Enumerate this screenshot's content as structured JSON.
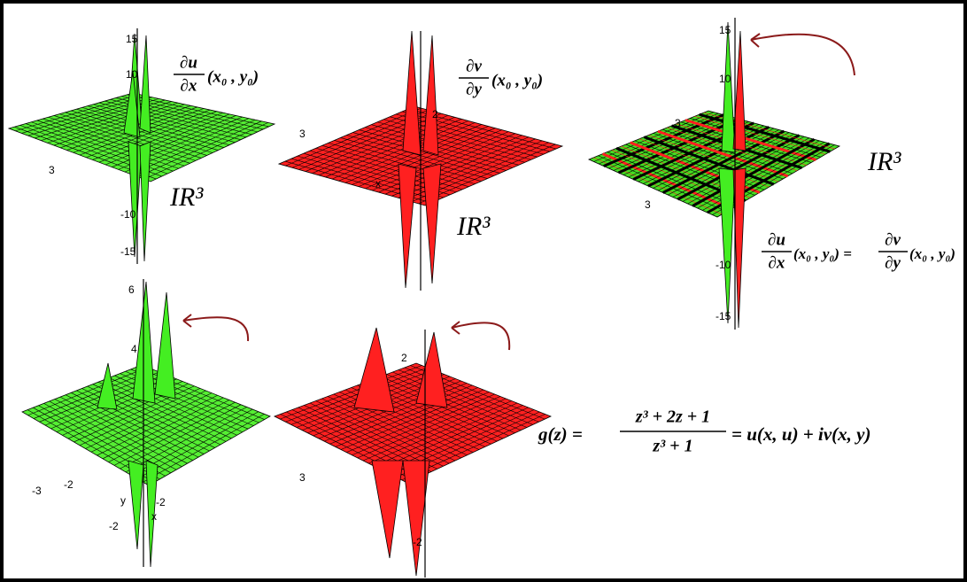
{
  "plots": [
    {
      "tick_labels": [
        "15",
        "10",
        "3",
        "-10",
        "-15"
      ],
      "space_label": "IR³",
      "formula": {
        "numerator": "∂u",
        "denominator": "∂x",
        "arguments": "(x₀ , y₀)"
      }
    },
    {
      "tick_labels": [
        "3",
        "2",
        "x"
      ],
      "space_label": "IR³",
      "formula": {
        "numerator": "∂v",
        "denominator": "∂y",
        "arguments": "(x₀ , y₀)"
      }
    },
    {
      "tick_labels": [
        "15",
        "10",
        "3",
        "3",
        "-10",
        "-15"
      ],
      "space_label": "IR³",
      "equation": {
        "left_numerator": "∂u",
        "left_denominator": "∂x",
        "left_arguments": "(x₀ , y₀) =",
        "right_numerator": "∂v",
        "right_denominator": "∂y",
        "right_arguments": "(x₀ , y₀)"
      }
    },
    {
      "tick_labels": [
        "6",
        "4",
        "-3",
        "-2",
        "y",
        "-2",
        "x",
        "-2"
      ]
    },
    {
      "tick_labels": [
        "2",
        "3",
        "-2"
      ]
    }
  ],
  "main_equation": {
    "lhs": "g(z) =",
    "numerator": "z³ + 2z + 1",
    "denominator": "z³ + 1",
    "rhs": "= u(x, u) + iv(x, y)"
  }
}
